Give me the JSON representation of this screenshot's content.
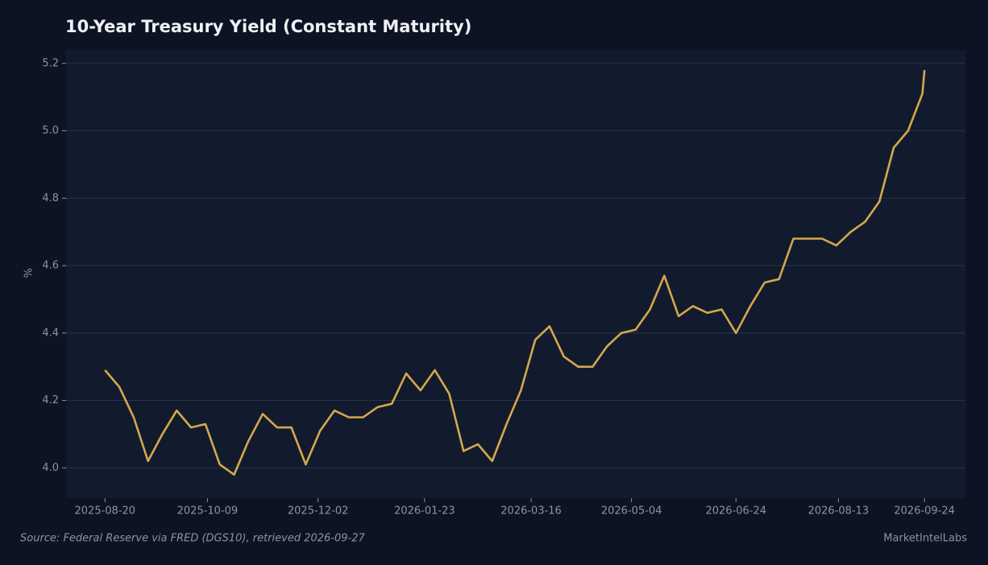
{
  "chart_data": {
    "type": "line",
    "title": "10-Year Treasury Yield (Constant Maturity)",
    "y_label": "%",
    "source": "Source: Federal Reserve via FRED (DGS10), retrieved 2026-09-27",
    "brand": "MarketIntelLabs",
    "x": [
      "2025-08-20",
      "2025-08-27",
      "2025-09-03",
      "2025-09-10",
      "2025-09-17",
      "2025-09-24",
      "2025-10-01",
      "2025-10-08",
      "2025-10-15",
      "2025-10-22",
      "2025-10-29",
      "2025-11-05",
      "2025-11-12",
      "2025-11-19",
      "2025-11-26",
      "2025-12-03",
      "2025-12-10",
      "2025-12-17",
      "2025-12-24",
      "2025-12-31",
      "2026-01-07",
      "2026-01-14",
      "2026-01-21",
      "2026-01-28",
      "2026-02-04",
      "2026-02-11",
      "2026-02-18",
      "2026-02-25",
      "2026-03-04",
      "2026-03-11",
      "2026-03-18",
      "2026-03-25",
      "2026-04-01",
      "2026-04-08",
      "2026-04-15",
      "2026-04-22",
      "2026-04-29",
      "2026-05-06",
      "2026-05-13",
      "2026-05-20",
      "2026-05-27",
      "2026-06-03",
      "2026-06-10",
      "2026-06-17",
      "2026-06-24",
      "2026-07-01",
      "2026-07-08",
      "2026-07-15",
      "2026-07-22",
      "2026-07-29",
      "2026-08-05",
      "2026-08-12",
      "2026-08-19",
      "2026-08-26",
      "2026-09-02",
      "2026-09-09",
      "2026-09-16",
      "2026-09-23",
      "2026-09-24"
    ],
    "series": [
      {
        "name": "DGS10",
        "color": "#d4a84b",
        "values": [
          4.29,
          4.24,
          4.15,
          4.02,
          4.1,
          4.17,
          4.12,
          4.13,
          4.01,
          3.98,
          4.08,
          4.16,
          4.12,
          4.12,
          4.01,
          4.11,
          4.17,
          4.15,
          4.15,
          4.18,
          4.19,
          4.28,
          4.23,
          4.29,
          4.22,
          4.05,
          4.07,
          4.02,
          4.13,
          4.23,
          4.38,
          4.42,
          4.33,
          4.3,
          4.3,
          4.36,
          4.4,
          4.41,
          4.47,
          4.57,
          4.45,
          4.48,
          4.46,
          4.47,
          4.4,
          4.48,
          4.55,
          4.56,
          4.68,
          4.68,
          4.68,
          4.66,
          4.7,
          4.73,
          4.79,
          4.95,
          5.0,
          5.11,
          5.18
        ]
      }
    ],
    "xlim": [
      "2025-08-01",
      "2026-10-14"
    ],
    "xticks": [
      "2025-08-20",
      "2025-10-09",
      "2025-12-02",
      "2026-01-23",
      "2026-03-16",
      "2026-05-04",
      "2026-06-24",
      "2026-08-13",
      "2026-09-24"
    ],
    "ylim": [
      3.91,
      5.24
    ],
    "yticks": [
      {
        "value": 4.0,
        "label": "4.0"
      },
      4.2,
      4.4,
      4.6,
      4.8,
      {
        "value": 5.0,
        "label": "5.0"
      },
      5.2
    ],
    "grid": true
  }
}
